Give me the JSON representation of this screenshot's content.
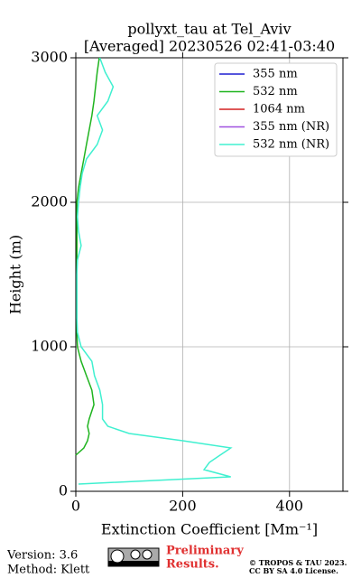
{
  "chart_data": {
    "type": "line",
    "title": [
      "pollyxt_tau at Tel_Aviv",
      "[Averaged] 20230526 02:41-03:40"
    ],
    "xlabel": "Extinction Coefficient [Mm⁻¹]",
    "ylabel": "Height (m)",
    "y": [
      50,
      100,
      150,
      200,
      250,
      300,
      350,
      400,
      450,
      500,
      600,
      700,
      800,
      900,
      1000,
      1100,
      1200,
      1300,
      1400,
      1500,
      1600,
      1700,
      1800,
      1900,
      2000,
      2100,
      2200,
      2300,
      2400,
      2500,
      2600,
      2700,
      2800,
      2900,
      3000
    ],
    "series": [
      {
        "name": "355 nm",
        "color": "#1f1fd0",
        "values": [
          null,
          null,
          null,
          null,
          null,
          null,
          null,
          null,
          null,
          null,
          null,
          null,
          null,
          null,
          null,
          null,
          null,
          null,
          null,
          null,
          null,
          null,
          null,
          null,
          null,
          null,
          null,
          null,
          null,
          null,
          null,
          null,
          null,
          null,
          null
        ]
      },
      {
        "name": "532 nm",
        "color": "#1fb41f",
        "values": [
          null,
          null,
          null,
          null,
          0,
          15,
          22,
          25,
          22,
          25,
          34,
          30,
          20,
          10,
          3,
          2,
          2,
          2,
          2,
          2,
          2,
          2,
          2,
          2,
          2,
          5,
          10,
          15,
          20,
          25,
          30,
          34,
          37,
          40,
          44
        ]
      },
      {
        "name": "1064 nm",
        "color": "#d42020",
        "values": [
          null,
          null,
          null,
          null,
          null,
          null,
          null,
          null,
          null,
          null,
          null,
          null,
          null,
          null,
          null,
          null,
          null,
          null,
          null,
          null,
          null,
          null,
          null,
          null,
          null,
          null,
          null,
          null,
          null,
          null,
          null,
          null,
          null,
          null,
          null
        ]
      },
      {
        "name": "355 nm (NR)",
        "color": "#a050e0",
        "values": [
          null,
          null,
          null,
          null,
          null,
          null,
          null,
          null,
          null,
          null,
          null,
          null,
          null,
          null,
          null,
          null,
          null,
          null,
          null,
          null,
          null,
          null,
          null,
          null,
          null,
          null,
          null,
          null,
          null,
          null,
          null,
          null,
          null,
          null,
          null
        ]
      },
      {
        "name": "532 nm (NR)",
        "color": "#40f0d0",
        "values": [
          5,
          290,
          240,
          250,
          270,
          290,
          200,
          100,
          60,
          50,
          50,
          45,
          35,
          30,
          10,
          3,
          2,
          2,
          2,
          2,
          3,
          10,
          5,
          3,
          5,
          8,
          12,
          20,
          40,
          50,
          40,
          60,
          70,
          55,
          45
        ]
      }
    ],
    "xlim": [
      0,
      500
    ],
    "xticks": [
      0,
      200,
      400
    ],
    "ylim": [
      0,
      3000
    ],
    "yticks": [
      0,
      1000,
      2000,
      3000
    ],
    "grid": true,
    "legend": "upper right",
    "footer": {
      "version": "Version: 3.6",
      "method": "Method: Klett",
      "preliminary": [
        "Preliminary",
        "Results."
      ],
      "copyright": [
        "© TROPOS & TAU 2023.",
        "CC BY SA 4.0 License."
      ]
    }
  }
}
